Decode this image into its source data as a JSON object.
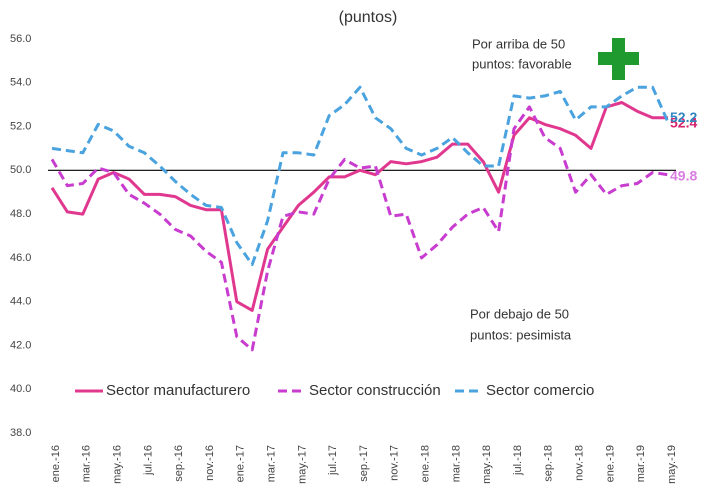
{
  "chart_data": {
    "type": "line",
    "title": "(puntos)",
    "categories": [
      "ene.-16",
      null,
      "mar.-16",
      null,
      "may.-16",
      null,
      "jul.-16",
      null,
      "sep.-16",
      null,
      "nov.-16",
      null,
      "ene.-17",
      null,
      "mar.-17",
      null,
      "may.-17",
      null,
      "jul.-17",
      null,
      "sep.-17",
      null,
      "nov.-17",
      null,
      "ene.-18",
      null,
      "mar.-18",
      null,
      "may.-18",
      null,
      "jul.-18",
      null,
      "sep.-18",
      null,
      "nov.-18",
      null,
      "ene.-19",
      null,
      "mar.-19",
      null,
      "may.-19"
    ],
    "series": [
      {
        "name": "Sector manufacturero",
        "color": "#e0388f",
        "dash": "solid",
        "label_color": "#d6246e",
        "values": [
          49.2,
          48.1,
          48.0,
          49.6,
          49.9,
          49.6,
          48.9,
          48.9,
          48.8,
          48.4,
          48.2,
          48.2,
          44.0,
          43.6,
          46.4,
          47.4,
          48.4,
          49.0,
          49.7,
          49.7,
          50.0,
          49.8,
          50.4,
          50.3,
          50.4,
          50.6,
          51.2,
          51.2,
          50.4,
          49.0,
          51.6,
          52.4,
          52.1,
          51.9,
          51.6,
          51.0,
          52.9,
          53.1,
          52.7,
          52.4,
          52.4
        ]
      },
      {
        "name": "Sector construcción",
        "color": "#c83ccf",
        "dash": "dashed",
        "label_color": "#d77ee0",
        "values": [
          50.5,
          49.3,
          49.4,
          50.1,
          49.9,
          48.9,
          48.5,
          48.0,
          47.3,
          47.0,
          46.3,
          45.8,
          42.4,
          41.8,
          45.4,
          47.9,
          48.1,
          48.0,
          49.6,
          50.5,
          50.1,
          50.2,
          47.9,
          48.0,
          46.0,
          46.6,
          47.4,
          48.0,
          48.3,
          47.2,
          51.9,
          52.9,
          51.5,
          51.0,
          49.0,
          49.8,
          48.9,
          49.3,
          49.4,
          49.9,
          49.8
        ]
      },
      {
        "name": "Sector comercio",
        "color": "#4aa3df",
        "dash": "dashed",
        "label_color": "#2f86c0",
        "values": [
          51.0,
          50.9,
          50.8,
          52.1,
          51.8,
          51.1,
          50.8,
          50.2,
          49.5,
          48.9,
          48.4,
          48.3,
          46.7,
          45.7,
          47.7,
          50.8,
          50.8,
          50.7,
          52.5,
          53.0,
          53.8,
          52.4,
          51.9,
          51.0,
          50.7,
          51.0,
          51.5,
          50.8,
          50.2,
          50.2,
          53.4,
          53.3,
          53.4,
          53.6,
          52.3,
          52.9,
          52.9,
          53.4,
          53.8,
          53.8,
          52.2
        ]
      }
    ],
    "ylim": [
      38,
      56
    ],
    "yticks": [
      {
        "value": 38,
        "label": "38.0"
      },
      {
        "value": 40,
        "label": "40.0"
      },
      {
        "value": 42,
        "label": "42.0"
      },
      {
        "value": 44,
        "label": "44.0"
      },
      {
        "value": 46,
        "label": "46.0"
      },
      {
        "value": 48,
        "label": "48.0"
      },
      {
        "value": 50,
        "label": "50.0"
      },
      {
        "value": 52,
        "label": "52.0"
      },
      {
        "value": 54,
        "label": "54.0"
      },
      {
        "value": 56,
        "label": "56.0"
      }
    ],
    "reference_line": 50,
    "annotations": [
      "Por arriba de 50",
      "puntos: favorable",
      "Por debajo de 50",
      "puntos: pesimista"
    ]
  }
}
